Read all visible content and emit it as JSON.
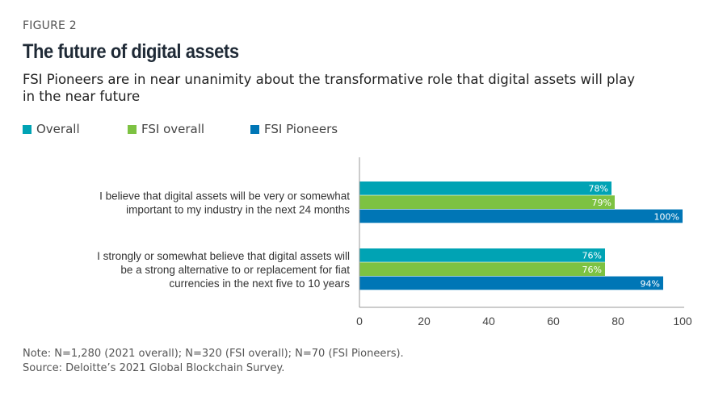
{
  "header": {
    "figure_label": "FIGURE 2",
    "title": "The future of digital assets",
    "subtitle": "FSI Pioneers are in near unanimity about the transformative role that digital assets will play in the near future"
  },
  "footer": {
    "note": "Note:  N=1,280 (2021 overall); N=320 (FSI overall); N=70 (FSI Pioneers).",
    "source": "Source: Deloitte’s 2021 Global Blockchain Survey."
  },
  "chart_data": {
    "type": "bar",
    "orientation": "horizontal",
    "title": "The future of digital assets",
    "categories": [
      [
        "I believe that digital assets will be very or somewhat",
        "important to my industry in the next 24 months"
      ],
      [
        "I strongly or somewhat believe that digital assets will",
        "be a strong alternative to or replacement for fiat",
        "currencies in the next five to 10 years"
      ]
    ],
    "series": [
      {
        "name": "Overall",
        "color": "#00A3B4",
        "values": [
          78,
          76
        ]
      },
      {
        "name": "FSI overall",
        "color": "#7DC242",
        "values": [
          79,
          76
        ]
      },
      {
        "name": "FSI Pioneers",
        "color": "#0076B6",
        "values": [
          100,
          94
        ]
      }
    ],
    "value_suffix": "%",
    "xlim": [
      0,
      100
    ],
    "xticks": [
      0,
      20,
      40,
      60,
      80,
      100
    ],
    "xlabel": "",
    "ylabel": "",
    "grid": false,
    "legend": "top-left"
  }
}
